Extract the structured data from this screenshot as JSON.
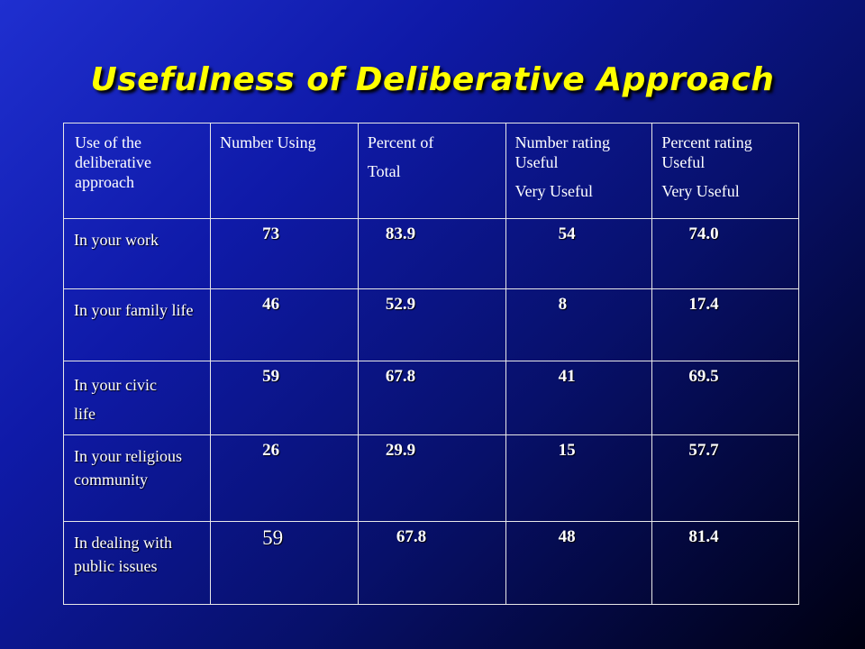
{
  "title": "Usefulness of Deliberative Approach",
  "headers": {
    "col0": "Use of the deliberative approach",
    "col1": "Number Using",
    "col2_line1": "Percent of",
    "col2_line2": "Total",
    "col3_line1": "Number rating Useful",
    "col3_line2": "Very Useful",
    "col4_line1": "Percent rating Useful",
    "col4_line2": "Very Useful"
  },
  "rows": [
    {
      "label1": "In your work",
      "label2": "",
      "number_using": "73",
      "percent_total": "83.9",
      "number_rating": "54",
      "percent_rating": "74.0"
    },
    {
      "label1": "In your family life",
      "label2": "",
      "number_using": "46",
      "percent_total": "52.9",
      "number_rating": "8",
      "percent_rating": "17.4"
    },
    {
      "label1": "In your civic",
      "label2": "life",
      "number_using": "59",
      "percent_total": "67.8",
      "number_rating": "41",
      "percent_rating": "69.5"
    },
    {
      "label1": "In your religious community",
      "label2": "",
      "number_using": "26",
      "percent_total": "29.9",
      "number_rating": "15",
      "percent_rating": "57.7"
    },
    {
      "label1": "In dealing with public issues",
      "label2": "",
      "number_using": "59",
      "percent_total": "67.8",
      "number_rating": "48",
      "percent_rating": "81.4"
    }
  ],
  "chart_data": {
    "type": "table",
    "title": "Usefulness of Deliberative Approach",
    "columns": [
      "Use of the deliberative approach",
      "Number Using",
      "Percent of Total",
      "Number rating Useful Very Useful",
      "Percent rating Useful Very Useful"
    ],
    "rows": [
      [
        "In your work",
        73,
        83.9,
        54,
        74.0
      ],
      [
        "In your family life",
        46,
        52.9,
        8,
        17.4
      ],
      [
        "In your civic life",
        59,
        67.8,
        41,
        69.5
      ],
      [
        "In your religious community",
        26,
        29.9,
        15,
        57.7
      ],
      [
        "In dealing with public issues",
        59,
        67.8,
        48,
        81.4
      ]
    ]
  },
  "colors": {
    "title": "#ffff00",
    "text": "#ffffff",
    "background_start": "#1f2fd0",
    "background_end": "#000010",
    "grid": "#e8e8e8"
  }
}
